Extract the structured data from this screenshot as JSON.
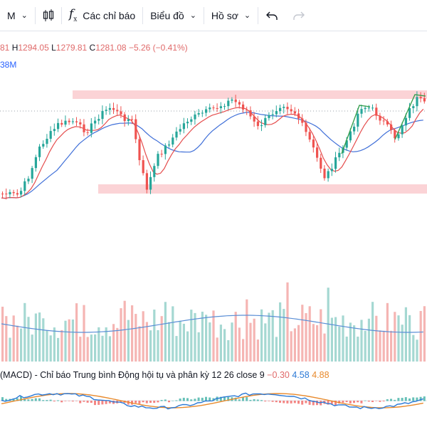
{
  "toolbar": {
    "interval_label": "M",
    "indicators_label": "Các chỉ báo",
    "chart_type_label": "Biểu đồ",
    "profile_label": "Hồ sơ"
  },
  "legend": {
    "open_partial": "81",
    "high_label": "H",
    "high_value": "1294.05",
    "low_label": "L",
    "low_value": "1279.81",
    "close_label": "C",
    "close_value": "1281.08",
    "change": "−5.26 (−0.41%)",
    "volume_partial": "38M"
  },
  "macd": {
    "title": "(MACD) - Chỉ báo Trung bình Động hội tụ và phân kỳ",
    "params": "12 26 close 9",
    "histogram": "−0.30",
    "macd_value": "4.58",
    "signal_value": "4.88"
  },
  "colors": {
    "up": "#26a69a",
    "down": "#ef5350",
    "ma_fast": "#e54d4d",
    "ma_slow": "#3f6fd8",
    "zone": "#fbd3d6",
    "macd_line": "#2b79d6",
    "signal_line": "#e8892b"
  },
  "icons": {
    "candles": "candlestick-icon",
    "indicators": "function-fx-icon",
    "undo": "undo-arrow-icon",
    "redo": "redo-arrow-icon"
  }
}
